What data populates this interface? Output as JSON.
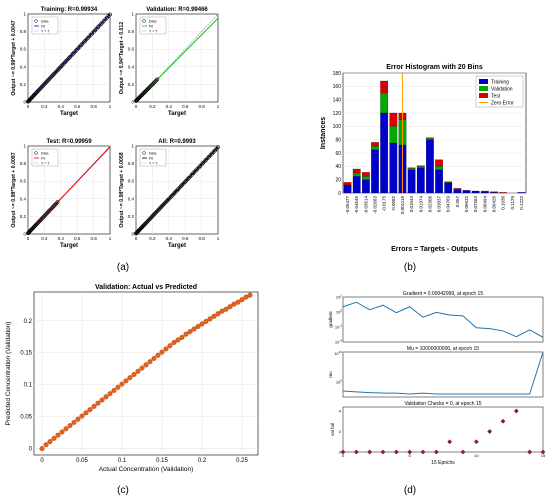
{
  "panel_labels": [
    "(a)",
    "(b)",
    "(c)",
    "(d)"
  ],
  "colors": {
    "data_marker": "#000000",
    "fit_training": "#0000ff",
    "fit_validation": "#00cc00",
    "fit_test": "#e00000",
    "fit_all": "#000000",
    "identity_line": "#888888",
    "hist_training": "#0000cc",
    "hist_validation": "#00aa00",
    "hist_test": "#dd0000",
    "zero_error": "#ff9900",
    "scatter_orange": "#e2621b",
    "perf_line": "#1f77b4",
    "val_marker": "#a01030"
  },
  "chart_data": [
    {
      "type": "scatter",
      "title": "Training: R=0.99934",
      "xlabel": "Target",
      "ylabel": "Output ~= 0.99*Target + 0.0047",
      "xlim": [
        0,
        1
      ],
      "ylim": [
        0,
        1
      ],
      "xticks": [
        0,
        0.2,
        0.4,
        0.6,
        0.8,
        1
      ],
      "yticks": [
        0,
        0.2,
        0.4,
        0.6,
        0.8,
        1
      ],
      "legend": [
        "Data",
        "Fit",
        "Y = T"
      ],
      "fit": {
        "slope": 0.99,
        "intercept": 0.0047
      },
      "data_range": [
        0,
        1
      ]
    },
    {
      "type": "scatter",
      "title": "Validation: R=0.99466",
      "xlabel": "Target",
      "ylabel": "Output ~= 0.94*Target + 0.012",
      "xlim": [
        0,
        1
      ],
      "ylim": [
        0,
        1
      ],
      "xticks": [
        0,
        0.2,
        0.4,
        0.6,
        0.8,
        1
      ],
      "yticks": [
        0,
        0.2,
        0.4,
        0.6,
        0.8,
        1
      ],
      "legend": [
        "Data",
        "Fit",
        "Y = T"
      ],
      "fit": {
        "slope": 0.94,
        "intercept": 0.012
      },
      "data_range": [
        0,
        0.26
      ]
    },
    {
      "type": "scatter",
      "title": "Test: R=0.99959",
      "xlabel": "Target",
      "ylabel": "Output ~= 0.98*Target + 0.0087",
      "xlim": [
        0,
        1
      ],
      "ylim": [
        0,
        1
      ],
      "xticks": [
        0,
        0.2,
        0.4,
        0.6,
        0.8,
        1
      ],
      "yticks": [
        0,
        0.2,
        0.4,
        0.6,
        0.8,
        1
      ],
      "legend": [
        "Data",
        "Fit",
        "Y = T"
      ],
      "fit": {
        "slope": 0.98,
        "intercept": 0.0087
      },
      "data_range": [
        0,
        0.36
      ]
    },
    {
      "type": "scatter",
      "title": "All: R=0.9993",
      "xlabel": "Target",
      "ylabel": "Output ~= 0.98*Target + 0.0058",
      "xlim": [
        0,
        1
      ],
      "ylim": [
        0,
        1
      ],
      "xticks": [
        0,
        0.2,
        0.4,
        0.6,
        0.8,
        1
      ],
      "yticks": [
        0,
        0.2,
        0.4,
        0.6,
        0.8,
        1
      ],
      "legend": [
        "Data",
        "Fit",
        "Y = T"
      ],
      "fit": {
        "slope": 0.98,
        "intercept": 0.0058
      },
      "data_range": [
        0,
        1
      ]
    },
    {
      "type": "bar",
      "stacked": true,
      "title": "Error Histogram with 20 Bins",
      "xlabel": "Errors = Targets - Outputs",
      "ylabel": "Instances",
      "ylim": [
        0,
        180
      ],
      "yticks": [
        0,
        20,
        40,
        60,
        80,
        100,
        120,
        140,
        160,
        180
      ],
      "categories": [
        "-0.05477",
        "-0.04546",
        "-0.03614",
        "-0.02683",
        "-0.0175",
        "-0.0082",
        "0.001116",
        "0.01043",
        "0.01974",
        "0.02906",
        "0.03837",
        "0.04769",
        "0.057",
        "0.06632",
        "0.07563",
        "0.08494",
        "0.09426",
        "0.1036",
        "0.1129",
        "0.1222"
      ],
      "series": [
        {
          "name": "Training",
          "values": [
            12,
            25,
            20,
            65,
            120,
            75,
            72,
            35,
            38,
            80,
            35,
            15,
            5,
            4,
            3,
            2,
            1,
            0,
            0,
            1
          ]
        },
        {
          "name": "Validation",
          "values": [
            0,
            5,
            5,
            5,
            30,
            25,
            38,
            2,
            2,
            2,
            5,
            1,
            1,
            0,
            0,
            0,
            0,
            0,
            0,
            0
          ]
        },
        {
          "name": "Test",
          "values": [
            4,
            6,
            6,
            6,
            18,
            20,
            10,
            1,
            1,
            1,
            10,
            1,
            1,
            0,
            0,
            1,
            1,
            1,
            0,
            0
          ]
        }
      ],
      "zero_error_category": "0.001116",
      "legend": [
        "Training",
        "Validation",
        "Test",
        "Zero Error"
      ]
    },
    {
      "type": "scatter",
      "title": "Validation: Actual vs Predicted",
      "xlabel": "Actual Concentration (Validation)",
      "ylabel": "Predicted Concentration (Validation)",
      "xlim": [
        -0.01,
        0.27
      ],
      "ylim": [
        -0.01,
        0.245
      ],
      "xticks": [
        0,
        0.05,
        0.1,
        0.15,
        0.2,
        0.25
      ],
      "yticks": [
        0,
        0.05,
        0.1,
        0.15,
        0.2
      ],
      "x": [
        0.0,
        0.005,
        0.01,
        0.015,
        0.02,
        0.025,
        0.03,
        0.035,
        0.04,
        0.045,
        0.05,
        0.055,
        0.06,
        0.065,
        0.07,
        0.075,
        0.08,
        0.085,
        0.09,
        0.095,
        0.1,
        0.105,
        0.11,
        0.115,
        0.12,
        0.125,
        0.13,
        0.135,
        0.14,
        0.145,
        0.15,
        0.155,
        0.16,
        0.165,
        0.17,
        0.175,
        0.18,
        0.185,
        0.19,
        0.195,
        0.2,
        0.205,
        0.21,
        0.215,
        0.22,
        0.225,
        0.23,
        0.235,
        0.24,
        0.245,
        0.25,
        0.255,
        0.26
      ],
      "y": [
        0.0,
        0.006,
        0.011,
        0.016,
        0.021,
        0.026,
        0.031,
        0.036,
        0.041,
        0.046,
        0.051,
        0.056,
        0.061,
        0.066,
        0.071,
        0.076,
        0.081,
        0.086,
        0.091,
        0.096,
        0.101,
        0.106,
        0.111,
        0.116,
        0.121,
        0.126,
        0.131,
        0.136,
        0.141,
        0.146,
        0.151,
        0.156,
        0.161,
        0.166,
        0.17,
        0.174,
        0.179,
        0.183,
        0.187,
        0.191,
        0.195,
        0.199,
        0.203,
        0.207,
        0.211,
        0.215,
        0.218,
        0.222,
        0.226,
        0.229,
        0.233,
        0.237,
        0.24
      ]
    },
    {
      "type": "line",
      "title": "Gradient = 0.00042999, at epoch 15",
      "ylabel": "gradient",
      "log_y": true,
      "ylim": [
        0.0001,
        100
      ],
      "yticks_labels": [
        "10^2",
        "10^0",
        "10^-2",
        "10^-4"
      ],
      "x": [
        0,
        1,
        2,
        3,
        4,
        5,
        6,
        7,
        8,
        9,
        10,
        11,
        12,
        13,
        14,
        15
      ],
      "y": [
        5,
        20,
        2,
        8,
        0.8,
        5,
        0.2,
        0.9,
        0.4,
        0.3,
        0.008,
        0.006,
        0.003,
        0.0005,
        0.004,
        0.00043
      ]
    },
    {
      "type": "line",
      "title": "Mu = 10000000000, at epoch 15",
      "ylabel": "mu",
      "log_y": true,
      "ylim": [
        1e-05,
        10000000000.0
      ],
      "yticks_labels": [
        "10^10",
        "10^0"
      ],
      "x": [
        0,
        1,
        2,
        3,
        4,
        5,
        6,
        7,
        8,
        9,
        10,
        11,
        12,
        13,
        14,
        15
      ],
      "y": [
        0.001,
        0.0005,
        0.0003,
        0.0002,
        0.0002,
        0.0001,
        0.0002,
        0.0001,
        0.0001,
        0.0001,
        0.0001,
        0.0001,
        0.0001,
        0.0001,
        0.0001,
        10000000000
      ]
    },
    {
      "type": "scatter",
      "title": "Validation Checks = 0, at epoch 15",
      "ylabel": "val fail",
      "xlabel": "15 Epochs",
      "ylim": [
        0,
        4
      ],
      "yticks": [
        0,
        2,
        4
      ],
      "xticks": [
        0,
        5,
        10,
        15
      ],
      "x": [
        0,
        1,
        2,
        3,
        4,
        5,
        6,
        7,
        8,
        9,
        10,
        11,
        12,
        13,
        14,
        15
      ],
      "y": [
        0,
        0,
        0,
        0,
        0,
        0,
        0,
        0,
        1,
        0,
        1,
        2,
        3,
        4,
        0,
        0
      ]
    }
  ]
}
